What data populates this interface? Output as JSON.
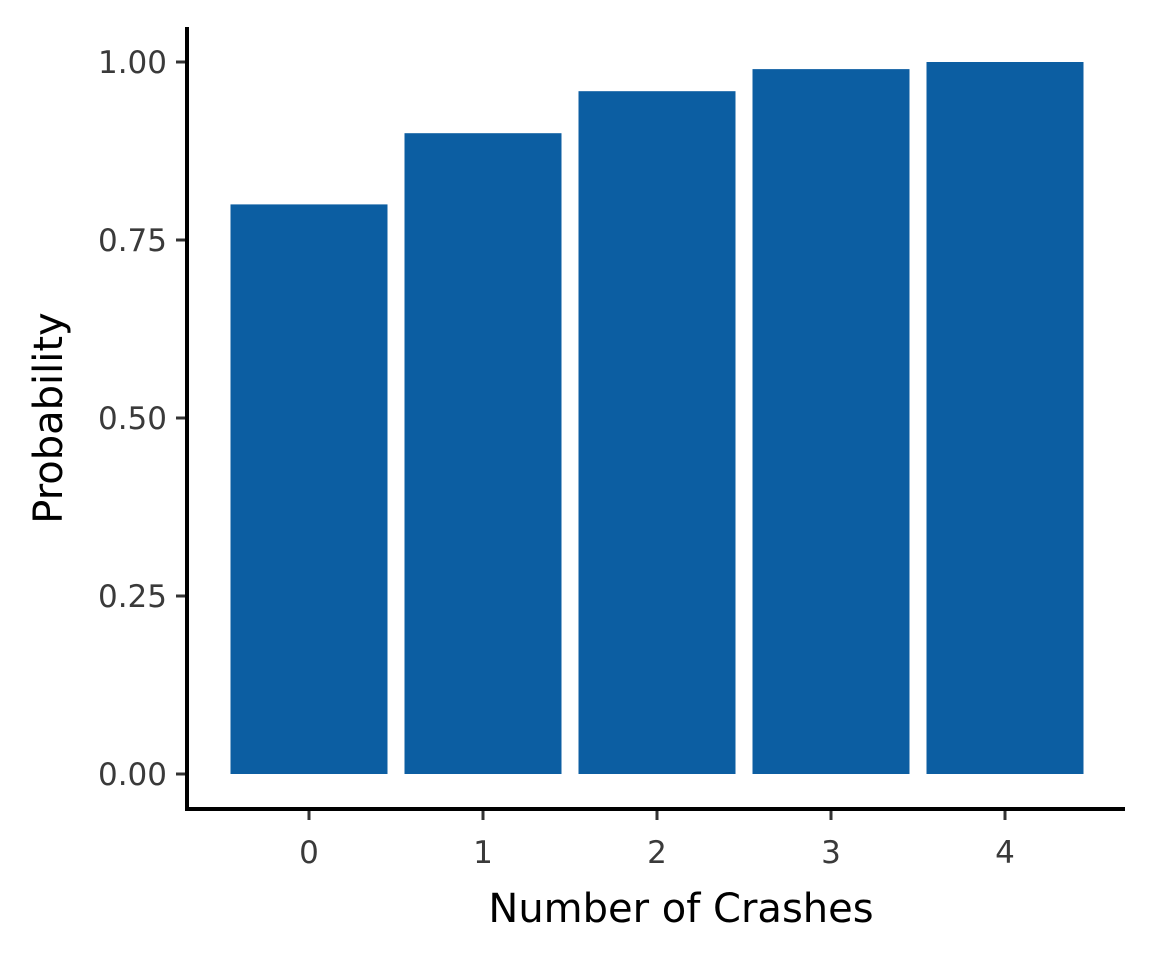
{
  "chart_data": {
    "type": "bar",
    "categories": [
      "0",
      "1",
      "2",
      "3",
      "4"
    ],
    "values": [
      0.8,
      0.9,
      0.959,
      0.99,
      1.0
    ],
    "xlabel": "Number of Crashes",
    "ylabel": "Probability",
    "ylim": [
      0,
      1.0
    ],
    "yticks": [
      "0.00",
      "0.25",
      "0.50",
      "0.75",
      "1.00"
    ],
    "grid": false,
    "bar_color": "#0C5EA2"
  }
}
